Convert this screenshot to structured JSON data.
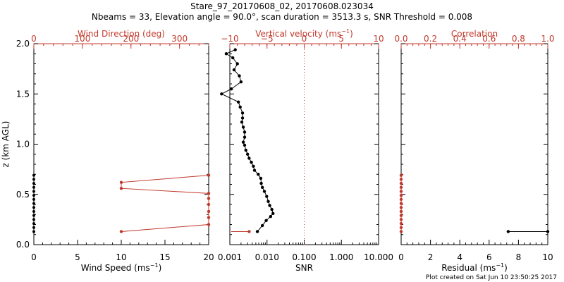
{
  "header": {
    "title": "Stare_97_20170608_02, 20170608.023034",
    "subtitle": "Nbeams = 33, Elevation angle = 90.0°, scan duration = 3513.3 s, SNR Threshold = 0.008"
  },
  "footer": {
    "created": "Plot created on Sat Jun 10 23:50:25 2017"
  },
  "colors": {
    "axis": "#000000",
    "accent": "#c0392b"
  },
  "chart_data": [
    {
      "type": "scatter",
      "name": "wind-panel",
      "ylabel": "z (km AGL)",
      "ylim": [
        0,
        2
      ],
      "yticks": [
        "0.0",
        "0.5",
        "1.0",
        "1.5",
        "2.0"
      ],
      "bottom_axis": {
        "label": "Wind Speed (ms",
        "label_sup": "−1",
        "label_end": ")",
        "range": [
          0,
          20
        ],
        "ticks": [
          "0",
          "5",
          "10",
          "15",
          "20"
        ]
      },
      "top_axis": {
        "label": "Wind Direction (deg)",
        "range": [
          0,
          360
        ],
        "ticks": [
          "0",
          "100",
          "200",
          "300"
        ]
      },
      "series": [
        {
          "name": "Wind speed",
          "color": "#000000",
          "points": [
            [
              0,
              0.13
            ],
            [
              0,
              0.17
            ],
            [
              0,
              0.21
            ],
            [
              0,
              0.25
            ],
            [
              0,
              0.29
            ],
            [
              0,
              0.33
            ],
            [
              0,
              0.37
            ],
            [
              0,
              0.41
            ],
            [
              0,
              0.45
            ],
            [
              0,
              0.49
            ],
            [
              0,
              0.53
            ],
            [
              0,
              0.57
            ],
            [
              0,
              0.61
            ],
            [
              0,
              0.65
            ],
            [
              0,
              0.69
            ]
          ]
        },
        {
          "name": "Wind direction",
          "color": "#c0392b",
          "points": [
            [
              180,
              0.13
            ],
            [
              360,
              0.2
            ],
            [
              360,
              0.27
            ],
            [
              360,
              0.33
            ],
            [
              360,
              0.4
            ],
            [
              360,
              0.46
            ],
            [
              360,
              0.51
            ],
            [
              180,
              0.56
            ],
            [
              180,
              0.62
            ],
            [
              360,
              0.69
            ]
          ]
        }
      ]
    },
    {
      "type": "line",
      "name": "snr-panel",
      "ylim": [
        0,
        2
      ],
      "bottom_axis": {
        "label": "SNR",
        "scale": "log",
        "range": [
          0.001,
          10
        ],
        "ticks": [
          "0.001",
          "0.010",
          "0.100",
          "1.000",
          "10.000"
        ]
      },
      "top_axis": {
        "label": "Vertical velocity (ms",
        "label_sup": "−1",
        "label_end": ")",
        "range": [
          -10,
          10
        ],
        "ticks": [
          "−10",
          "−5",
          "0",
          "5",
          "10"
        ]
      },
      "reference_line": {
        "axis": "top",
        "value": 0,
        "style": "dotted"
      },
      "series": [
        {
          "name": "SNR",
          "color": "#000000",
          "points": [
            [
              0.0055,
              0.13
            ],
            [
              0.0075,
              0.19
            ],
            [
              0.0095,
              0.24
            ],
            [
              0.0125,
              0.28
            ],
            [
              0.0145,
              0.31
            ],
            [
              0.0135,
              0.35
            ],
            [
              0.0118,
              0.39
            ],
            [
              0.0108,
              0.43
            ],
            [
              0.0098,
              0.48
            ],
            [
              0.0085,
              0.53
            ],
            [
              0.0075,
              0.57
            ],
            [
              0.007,
              0.61
            ],
            [
              0.0068,
              0.66
            ],
            [
              0.0058,
              0.7
            ],
            [
              0.0046,
              0.74
            ],
            [
              0.0043,
              0.78
            ],
            [
              0.0038,
              0.82
            ],
            [
              0.0033,
              0.86
            ],
            [
              0.003,
              0.9
            ],
            [
              0.0027,
              0.94
            ],
            [
              0.0025,
              0.99
            ],
            [
              0.0023,
              1.02
            ],
            [
              0.0025,
              1.07
            ],
            [
              0.0025,
              1.12
            ],
            [
              0.0023,
              1.17
            ],
            [
              0.0021,
              1.22
            ],
            [
              0.0022,
              1.26
            ],
            [
              0.0022,
              1.31
            ],
            [
              0.0019,
              1.37
            ],
            [
              0.0017,
              1.42
            ],
            [
              0.0006,
              1.5
            ],
            [
              0.0011,
              1.55
            ],
            [
              0.002,
              1.62
            ],
            [
              0.0018,
              1.68
            ],
            [
              0.0013,
              1.74
            ],
            [
              0.0016,
              1.8
            ],
            [
              0.0012,
              1.86
            ],
            [
              0.0008,
              1.9
            ],
            [
              0.0014,
              1.94
            ]
          ]
        },
        {
          "name": "Vertical velocity",
          "color": "#c0392b",
          "points": [
            [
              -7.4,
              0.13
            ]
          ]
        }
      ]
    },
    {
      "type": "line",
      "name": "residual-panel",
      "ylim": [
        0,
        2
      ],
      "bottom_axis": {
        "label": "Residual (ms",
        "label_sup": "−1",
        "label_end": ")",
        "range": [
          0,
          10
        ],
        "ticks": [
          "0",
          "2",
          "4",
          "6",
          "8",
          "10"
        ]
      },
      "top_axis": {
        "label": "Correlation",
        "range": [
          0,
          1
        ],
        "ticks": [
          "0.0",
          "0.2",
          "0.4",
          "0.6",
          "0.8",
          "1.0"
        ]
      },
      "series": [
        {
          "name": "Residual",
          "color": "#000000",
          "points": [
            [
              7.3,
              0.13
            ],
            [
              10,
              0.13
            ]
          ]
        },
        {
          "name": "Correlation",
          "color": "#c0392b",
          "points": [
            [
              0,
              0.13
            ],
            [
              0,
              0.17
            ],
            [
              0,
              0.21
            ],
            [
              0,
              0.25
            ],
            [
              0,
              0.29
            ],
            [
              0,
              0.33
            ],
            [
              0,
              0.37
            ],
            [
              0,
              0.41
            ],
            [
              0,
              0.45
            ],
            [
              0,
              0.49
            ],
            [
              0,
              0.53
            ],
            [
              0,
              0.57
            ],
            [
              0,
              0.61
            ],
            [
              0,
              0.65
            ],
            [
              0,
              0.69
            ]
          ]
        }
      ]
    }
  ]
}
